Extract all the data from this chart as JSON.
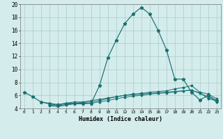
{
  "xlabel": "Humidex (Indice chaleur)",
  "bg_color": "#d4ecec",
  "line_color": "#1a7070",
  "grid_color": "#aacccc",
  "ylim": [
    4,
    20
  ],
  "xlim": [
    -0.5,
    23.5
  ],
  "yticks": [
    4,
    6,
    8,
    10,
    12,
    14,
    16,
    18,
    20
  ],
  "xticks": [
    0,
    1,
    2,
    3,
    4,
    5,
    6,
    7,
    8,
    9,
    10,
    11,
    12,
    13,
    14,
    15,
    16,
    17,
    18,
    19,
    20,
    21,
    22,
    23
  ],
  "main_x": [
    0,
    1,
    2,
    3,
    4,
    5,
    6,
    7,
    8,
    9,
    10,
    11,
    12,
    13,
    14,
    15,
    16,
    17,
    18,
    19,
    20,
    21,
    22,
    23
  ],
  "main_y": [
    6.5,
    5.8,
    5.0,
    4.7,
    4.5,
    4.8,
    4.8,
    4.8,
    4.8,
    7.5,
    11.8,
    14.5,
    17.0,
    18.5,
    19.5,
    18.5,
    16.0,
    13.0,
    8.5,
    8.5,
    6.5,
    5.3,
    6.0,
    5.2
  ],
  "flat1_x": [
    2,
    3,
    4,
    5,
    6,
    7,
    8,
    9,
    10,
    11,
    12,
    13,
    14,
    15,
    16,
    17,
    18,
    19,
    20,
    21,
    22,
    23
  ],
  "flat1_y": [
    5.0,
    4.8,
    4.6,
    4.8,
    5.0,
    5.0,
    5.2,
    5.4,
    5.6,
    5.8,
    6.0,
    6.1,
    6.2,
    6.3,
    6.4,
    6.5,
    6.6,
    6.7,
    6.8,
    6.4,
    5.5,
    5.2
  ],
  "flat2_x": [
    3,
    4,
    5,
    6,
    7,
    8,
    9,
    10,
    11,
    12,
    13,
    14,
    15,
    16,
    17,
    18,
    19,
    20,
    21,
    22,
    23
  ],
  "flat2_y": [
    4.5,
    4.4,
    4.6,
    4.8,
    4.9,
    5.0,
    5.2,
    5.5,
    5.8,
    6.0,
    6.2,
    6.3,
    6.5,
    6.6,
    6.7,
    7.0,
    7.2,
    7.5,
    6.5,
    6.2,
    5.5
  ],
  "flat3_x": [
    3,
    4,
    5,
    6,
    7,
    8,
    9,
    10,
    11,
    12,
    13,
    14,
    15,
    16,
    17,
    18,
    19,
    20,
    21,
    22,
    23
  ],
  "flat3_y": [
    4.4,
    4.3,
    4.5,
    4.7,
    4.7,
    4.8,
    5.0,
    5.2,
    5.5,
    5.7,
    5.9,
    6.0,
    6.2,
    6.3,
    6.4,
    6.5,
    6.7,
    6.8,
    6.3,
    5.8,
    5.0
  ]
}
